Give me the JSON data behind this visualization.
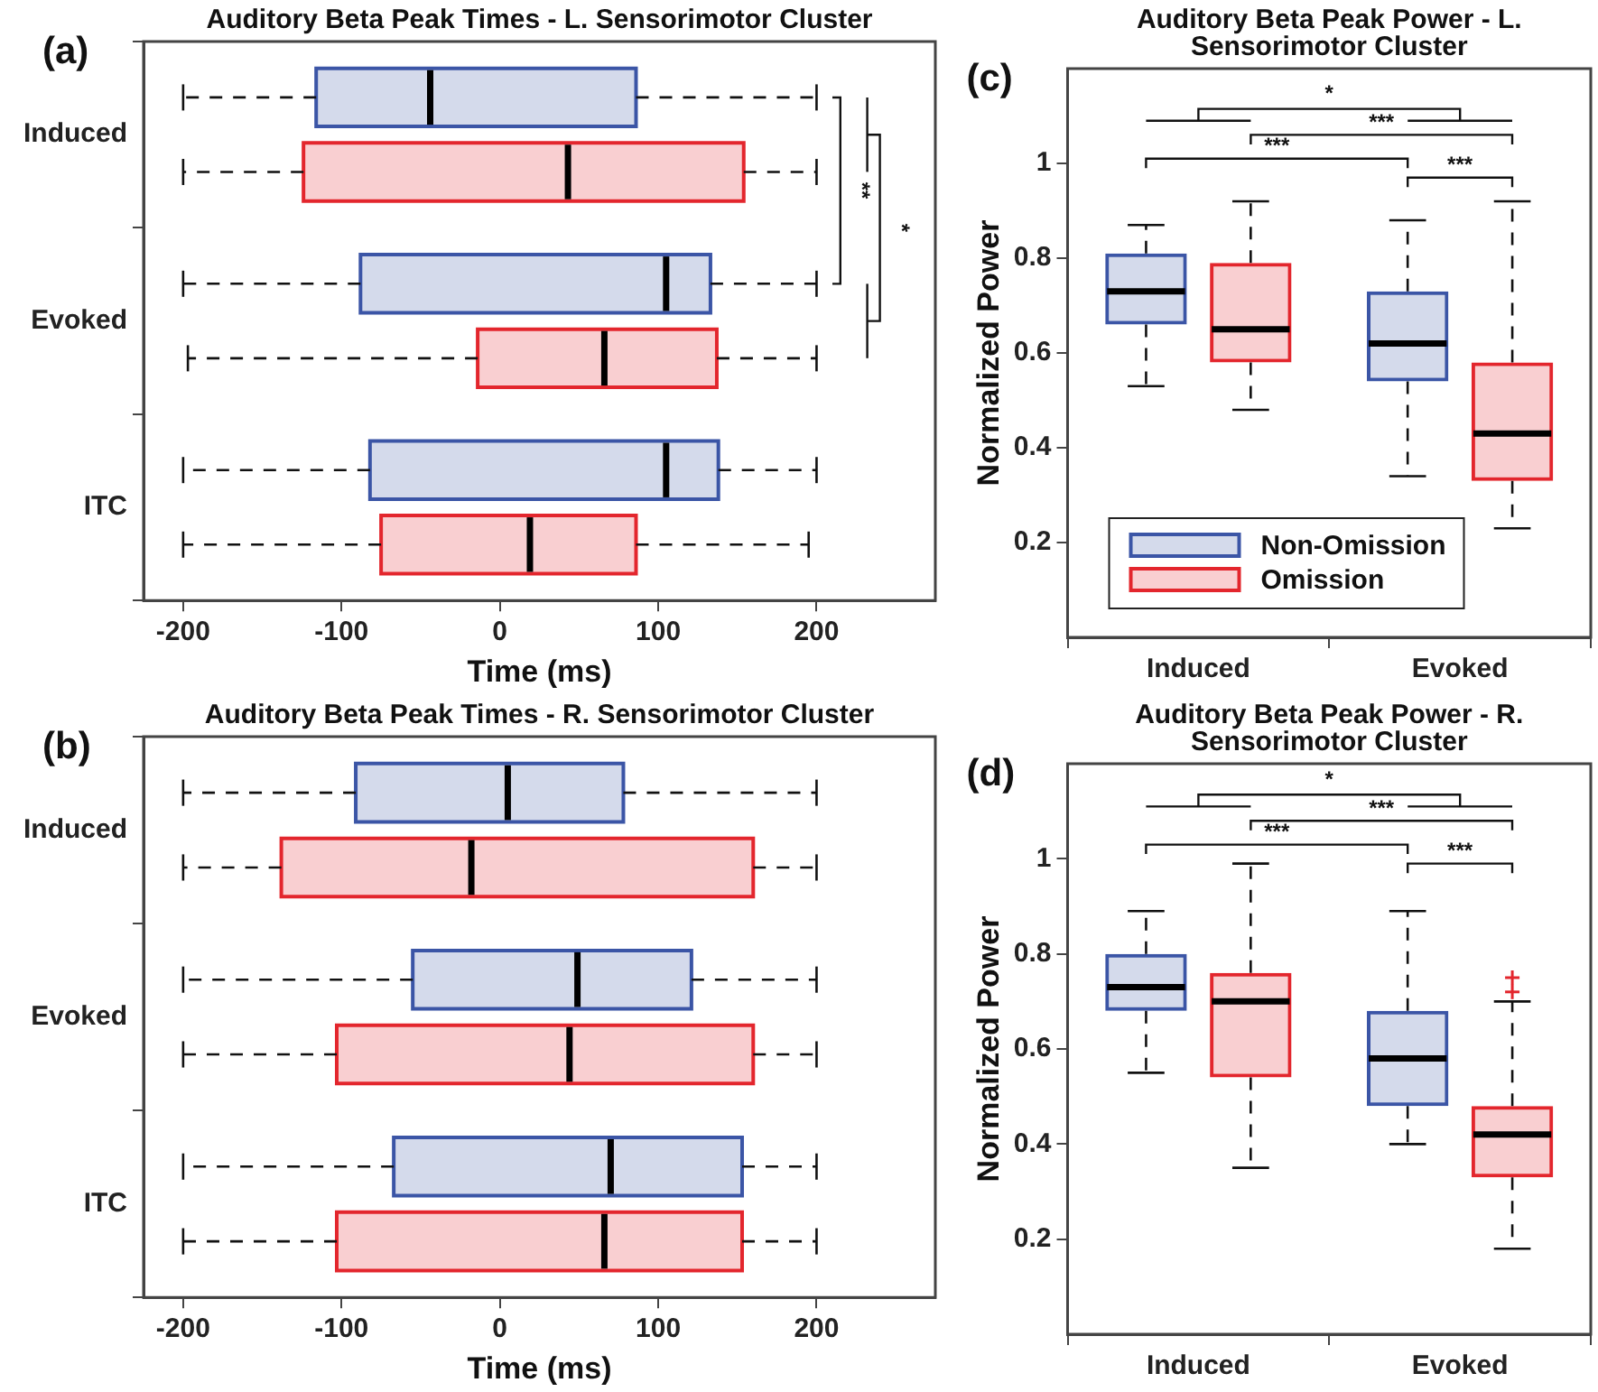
{
  "chart_data": [
    {
      "type": "box",
      "orientation": "horizontal",
      "title": "Auditory Beta Peak Times - L. Sensorimotor Cluster",
      "xlabel": "Time (ms)",
      "categories": [
        "Induced",
        "Evoked",
        "ITC"
      ],
      "xlim": [
        -225,
        275
      ],
      "xticks": [
        -200,
        -100,
        0,
        100,
        200
      ],
      "grid": false,
      "series": [
        {
          "color": "#3b55a6",
          "boxes": [
            {
              "low": -200,
              "q1": -116,
              "median": -44,
              "q3": 86,
              "high": 200
            },
            {
              "low": -200,
              "q1": -88,
              "median": 105,
              "q3": 133,
              "high": 200
            },
            {
              "low": -200,
              "q1": -82,
              "median": 105,
              "q3": 138,
              "high": 200
            }
          ]
        },
        {
          "color": "#e3262d",
          "boxes": [
            {
              "low": -200,
              "q1": -124,
              "median": 43,
              "q3": 154,
              "high": 200
            },
            {
              "low": -197,
              "q1": -14,
              "median": 66,
              "q3": 137,
              "high": 200
            },
            {
              "low": -200,
              "q1": -75,
              "median": 19,
              "q3": 86,
              "high": 195
            }
          ]
        }
      ],
      "annotations": [
        "(a)",
        "**",
        "*"
      ]
    },
    {
      "type": "box",
      "orientation": "horizontal",
      "title": "Auditory Beta Peak Times - R. Sensorimotor Cluster",
      "xlabel": "Time (ms)",
      "categories": [
        "Induced",
        "Evoked",
        "ITC"
      ],
      "xlim": [
        -225,
        275
      ],
      "xticks": [
        -200,
        -100,
        0,
        100,
        200
      ],
      "grid": false,
      "series": [
        {
          "color": "#3b55a6",
          "boxes": [
            {
              "low": -200,
              "q1": -91,
              "median": 5,
              "q3": 78,
              "high": 200
            },
            {
              "low": -200,
              "q1": -55,
              "median": 49,
              "q3": 121,
              "high": 200
            },
            {
              "low": -200,
              "q1": -67,
              "median": 70,
              "q3": 153,
              "high": 200
            }
          ]
        },
        {
          "color": "#e3262d",
          "boxes": [
            {
              "low": -200,
              "q1": -138,
              "median": -18,
              "q3": 160,
              "high": 200
            },
            {
              "low": -200,
              "q1": -103,
              "median": 44,
              "q3": 160,
              "high": 200
            },
            {
              "low": -200,
              "q1": -103,
              "median": 66,
              "q3": 153,
              "high": 200
            }
          ]
        }
      ],
      "annotations": [
        "(b)"
      ]
    },
    {
      "type": "box",
      "title": "Auditory Beta Peak Power - L. Sensorimotor Cluster",
      "ylabel": "Normalized Power",
      "categories": [
        "Induced",
        "Evoked"
      ],
      "ylim": [
        0,
        1.2
      ],
      "yticks": [
        0.2,
        0.4,
        0.6,
        0.8,
        1
      ],
      "grid": false,
      "legend": "bottom left",
      "series": [
        {
          "name": "Non-Omission",
          "color": "#3b55a6",
          "boxes": [
            {
              "low": 0.53,
              "q1": 0.66,
              "median": 0.73,
              "q3": 0.81,
              "high": 0.87
            },
            {
              "low": 0.34,
              "q1": 0.54,
              "median": 0.62,
              "q3": 0.73,
              "high": 0.88
            }
          ]
        },
        {
          "name": "Omission",
          "color": "#e3262d",
          "boxes": [
            {
              "low": 0.48,
              "q1": 0.58,
              "median": 0.65,
              "q3": 0.79,
              "high": 0.92
            },
            {
              "low": 0.23,
              "q1": 0.33,
              "median": 0.43,
              "q3": 0.58,
              "high": 0.92
            }
          ]
        }
      ],
      "annotations": [
        "(c)",
        "*",
        "***",
        "***",
        "***"
      ]
    },
    {
      "type": "box",
      "title": "Auditory Beta Peak Power - R. Sensorimotor Cluster",
      "ylabel": "Normalized Power",
      "categories": [
        "Induced",
        "Evoked"
      ],
      "ylim": [
        0,
        1.2
      ],
      "yticks": [
        0.2,
        0.4,
        0.6,
        0.8,
        1
      ],
      "grid": false,
      "series": [
        {
          "color": "#3b55a6",
          "boxes": [
            {
              "low": 0.55,
              "q1": 0.68,
              "median": 0.73,
              "q3": 0.8,
              "high": 0.89
            },
            {
              "low": 0.4,
              "q1": 0.48,
              "median": 0.58,
              "q3": 0.68,
              "high": 0.89
            }
          ]
        },
        {
          "color": "#e3262d",
          "boxes": [
            {
              "low": 0.35,
              "q1": 0.54,
              "median": 0.7,
              "q3": 0.76,
              "high": 0.99
            },
            {
              "low": 0.18,
              "q1": 0.33,
              "median": 0.42,
              "q3": 0.48,
              "high": 0.7,
              "outliers": [
                0.72,
                0.75
              ]
            }
          ]
        }
      ],
      "annotations": [
        "(d)",
        "*",
        "***",
        "***",
        "***"
      ]
    }
  ]
}
